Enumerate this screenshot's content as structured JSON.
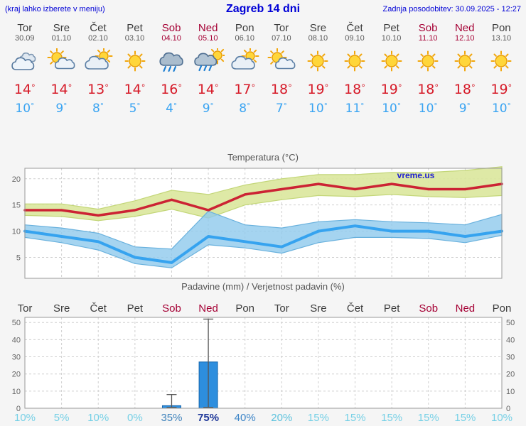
{
  "header": {
    "left_note": "(kraj lahko izberete v meniju)",
    "title": "Zagreb 14 dni",
    "updated": "Zadnja posodobitev: 30.09.2025 - 12:27"
  },
  "watermark": "vreme.us",
  "colors": {
    "header_blue": "#0000d6",
    "max_temp_red": "#d61a28",
    "min_temp_blue": "#3aa4f2",
    "weekend_red": "#a50034"
  },
  "days": [
    {
      "name": "Tor",
      "date": "30.09",
      "weekend": false,
      "icon": "cloudy",
      "tmax": 14,
      "tmin": 10
    },
    {
      "name": "Sre",
      "date": "01.10",
      "weekend": false,
      "icon": "sun-cloud",
      "tmax": 14,
      "tmin": 9
    },
    {
      "name": "Čet",
      "date": "02.10",
      "weekend": false,
      "icon": "cloud-sun",
      "tmax": 13,
      "tmin": 8
    },
    {
      "name": "Pet",
      "date": "03.10",
      "weekend": false,
      "icon": "sunny",
      "tmax": 14,
      "tmin": 5
    },
    {
      "name": "Sob",
      "date": "04.10",
      "weekend": true,
      "icon": "rain",
      "tmax": 16,
      "tmin": 4
    },
    {
      "name": "Ned",
      "date": "05.10",
      "weekend": true,
      "icon": "rain-sun",
      "tmax": 14,
      "tmin": 9
    },
    {
      "name": "Pon",
      "date": "06.10",
      "weekend": false,
      "icon": "cloud-sun",
      "tmax": 17,
      "tmin": 8
    },
    {
      "name": "Tor",
      "date": "07.10",
      "weekend": false,
      "icon": "sun-cloud",
      "tmax": 18,
      "tmin": 7
    },
    {
      "name": "Sre",
      "date": "08.10",
      "weekend": false,
      "icon": "sunny",
      "tmax": 19,
      "tmin": 10
    },
    {
      "name": "Čet",
      "date": "09.10",
      "weekend": false,
      "icon": "sunny",
      "tmax": 18,
      "tmin": 11
    },
    {
      "name": "Pet",
      "date": "10.10",
      "weekend": false,
      "icon": "sunny",
      "tmax": 19,
      "tmin": 10
    },
    {
      "name": "Sob",
      "date": "11.10",
      "weekend": true,
      "icon": "sunny",
      "tmax": 18,
      "tmin": 10
    },
    {
      "name": "Ned",
      "date": "12.10",
      "weekend": true,
      "icon": "sunny",
      "tmax": 18,
      "tmin": 9
    },
    {
      "name": "Pon",
      "date": "13.10",
      "weekend": false,
      "icon": "sunny",
      "tmax": 19,
      "tmin": 10
    }
  ],
  "chart_data": [
    {
      "type": "line",
      "title": "Temperatura (°C)",
      "categories": [
        "Tor",
        "Sre",
        "Čet",
        "Pet",
        "Sob",
        "Ned",
        "Pon",
        "Tor",
        "Sre",
        "Čet",
        "Pet",
        "Sob",
        "Ned",
        "Pon"
      ],
      "ylim": [
        1,
        22
      ],
      "yticks": [
        5,
        10,
        15,
        20
      ],
      "grid": true,
      "legend": "none",
      "series": [
        {
          "name": "max-temp",
          "color": "#cc2334",
          "values": [
            14,
            14,
            13,
            14,
            16,
            14,
            17,
            18,
            19,
            18,
            19,
            18,
            18,
            19
          ]
        },
        {
          "name": "min-temp",
          "color": "#36a3ef",
          "values": [
            10,
            9,
            8,
            5,
            4,
            9,
            8,
            7,
            10,
            11,
            10,
            10,
            9,
            10
          ]
        }
      ],
      "bands": [
        {
          "name": "max-range",
          "color": "#dbe79e",
          "edge": "#c3d678",
          "upper": [
            15.2,
            15.2,
            14.2,
            15.8,
            17.8,
            17.0,
            18.8,
            20.0,
            20.8,
            20.8,
            21.2,
            21.2,
            21.6,
            22.3
          ],
          "lower": [
            13.0,
            12.8,
            12.0,
            12.8,
            14.2,
            12.5,
            15.0,
            16.0,
            16.8,
            16.6,
            17.0,
            16.6,
            16.4,
            16.8
          ]
        },
        {
          "name": "min-range",
          "color": "#8ec9ec",
          "edge": "#69b1dd",
          "upper": [
            11.2,
            10.6,
            9.6,
            7.0,
            6.6,
            13.8,
            11.2,
            10.6,
            11.8,
            12.2,
            11.8,
            11.6,
            11.2,
            13.2
          ],
          "lower": [
            8.8,
            7.8,
            6.4,
            3.8,
            3.0,
            7.4,
            6.8,
            5.8,
            7.8,
            8.8,
            8.8,
            8.6,
            7.8,
            9.2
          ]
        }
      ]
    },
    {
      "type": "bar",
      "title": "Padavine (mm) / Verjetnost padavin (%)",
      "categories": [
        "Tor",
        "Sre",
        "Čet",
        "Pet",
        "Sob",
        "Ned",
        "Pon",
        "Tor",
        "Sre",
        "Čet",
        "Pet",
        "Sob",
        "Ned",
        "Pon"
      ],
      "weekend_indices": [
        4,
        5,
        11,
        12
      ],
      "values": [
        0,
        0,
        0,
        0,
        1.5,
        27,
        0,
        0,
        0,
        0,
        0,
        0,
        0,
        0
      ],
      "whiskers": [
        {
          "index": 4,
          "low": 0.5,
          "high": 8
        },
        {
          "index": 5,
          "low": 0.5,
          "high": 52
        }
      ],
      "ylim": [
        0,
        53
      ],
      "yticks": [
        0,
        10,
        20,
        30,
        40,
        50
      ],
      "bar_color": "#2d8ede",
      "bar_edge": "#1565ad",
      "probabilities": {
        "labels": [
          "10%",
          "5%",
          "10%",
          "0%",
          "35%",
          "75%",
          "40%",
          "20%",
          "15%",
          "15%",
          "15%",
          "15%",
          "15%",
          "10%"
        ],
        "values": [
          10,
          5,
          10,
          0,
          35,
          75,
          40,
          20,
          15,
          15,
          15,
          15,
          15,
          10
        ],
        "colors": [
          "#76d0e6",
          "#76d0e6",
          "#76d0e6",
          "#76d0e6",
          "#4285bd",
          "#20399a",
          "#3e86c8",
          "#5ec3de",
          "#76d0e6",
          "#76d0e6",
          "#76d0e6",
          "#76d0e6",
          "#76d0e6",
          "#76d0e6"
        ]
      }
    }
  ]
}
